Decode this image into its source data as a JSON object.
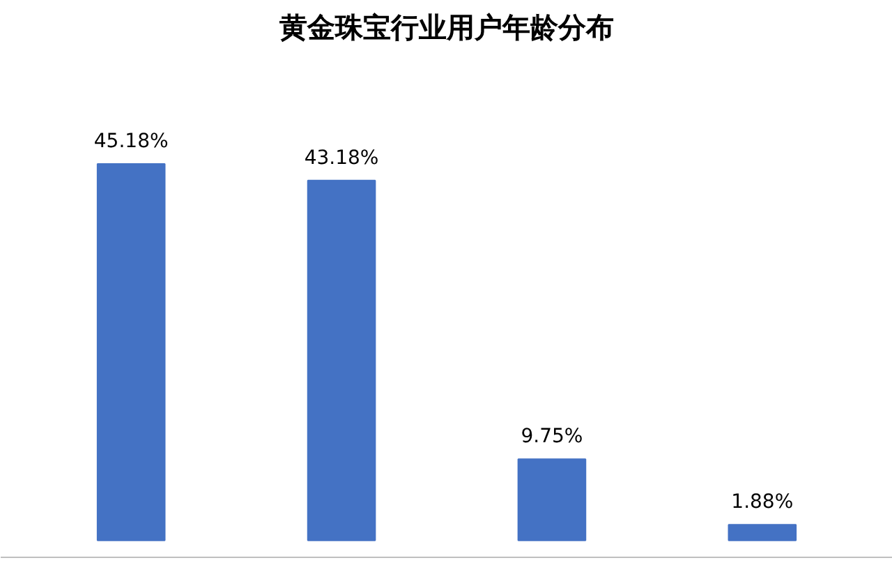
{
  "chart_data": {
    "type": "bar",
    "title": "黄金珠宝行业用户年龄分布",
    "categories": [
      null,
      null,
      null,
      null
    ],
    "values": [
      45.18,
      43.18,
      9.75,
      1.88
    ],
    "color": "#4472c4",
    "value_labels": [
      "45.18%",
      "43.18%",
      "9.75%",
      "1.88%"
    ],
    "grid": false
  }
}
